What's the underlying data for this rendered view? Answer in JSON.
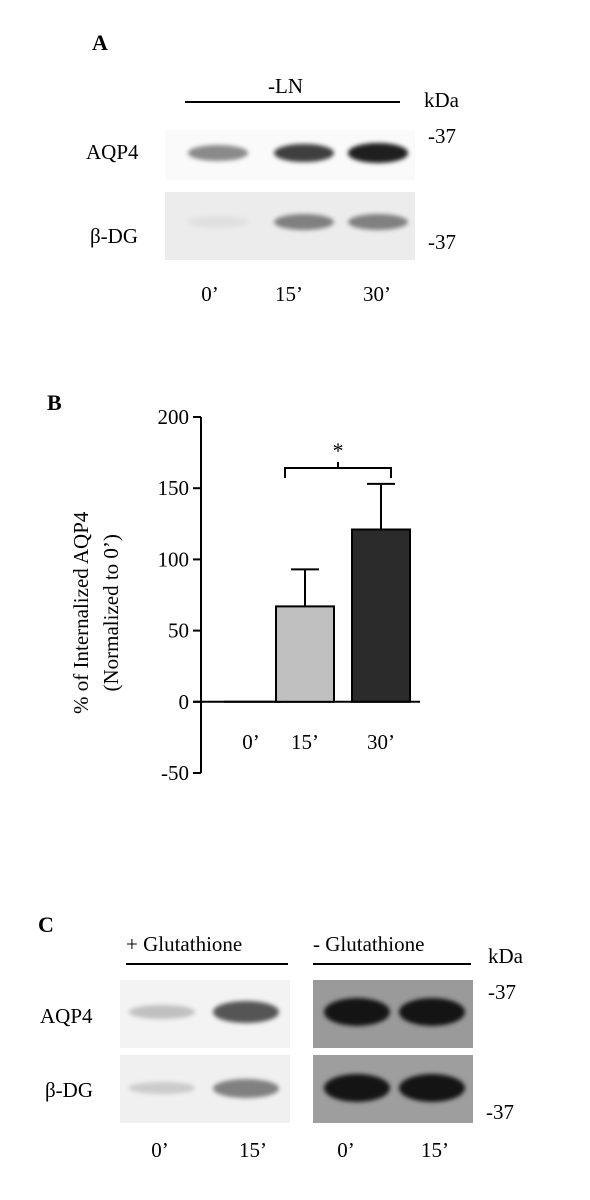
{
  "panel_a": {
    "letter": "A",
    "treatment": "-LN",
    "unit": "kDa",
    "marker_top": "-37",
    "marker_bottom": "-37",
    "rows": [
      {
        "label": "AQP4",
        "intensities": [
          0.45,
          0.8,
          0.95
        ]
      },
      {
        "label": "β-DG",
        "intensities": [
          0.05,
          0.5,
          0.5
        ]
      }
    ],
    "lanes": [
      "0’",
      "15’",
      "30’"
    ]
  },
  "panel_b": {
    "letter": "B"
  },
  "chart_data": {
    "type": "bar",
    "categories": [
      "0’",
      "15’",
      "30’"
    ],
    "values": [
      0,
      67,
      121
    ],
    "errors": [
      0,
      26,
      32
    ],
    "bar_colors": [
      "#ffffff",
      "#c0c0c0",
      "#2b2b2b"
    ],
    "ylabel": "% of Internalized AQP4",
    "ylabel2": "(Normalized to 0’)",
    "ylim": [
      -50,
      200
    ],
    "yticks": [
      "200",
      "150",
      "100",
      "50",
      "0",
      "-50"
    ],
    "yticks_values": [
      200,
      150,
      100,
      50,
      0,
      -50
    ],
    "significance": {
      "from": "15’",
      "to": "30’",
      "label": "*"
    },
    "grid": false
  },
  "panel_c": {
    "letter": "C",
    "group_left": "+ Glutathione",
    "group_right": "- Glutathione",
    "unit": "kDa",
    "marker_top": "-37",
    "marker_bottom": "-37",
    "rows": [
      {
        "label": "AQP4",
        "intensities": [
          0.2,
          0.7,
          1.0,
          1.0
        ]
      },
      {
        "label": "β-DG",
        "intensities": [
          0.15,
          0.5,
          1.0,
          1.0
        ]
      }
    ],
    "lanes": [
      "0’",
      "15’",
      "0’",
      "15’"
    ]
  }
}
